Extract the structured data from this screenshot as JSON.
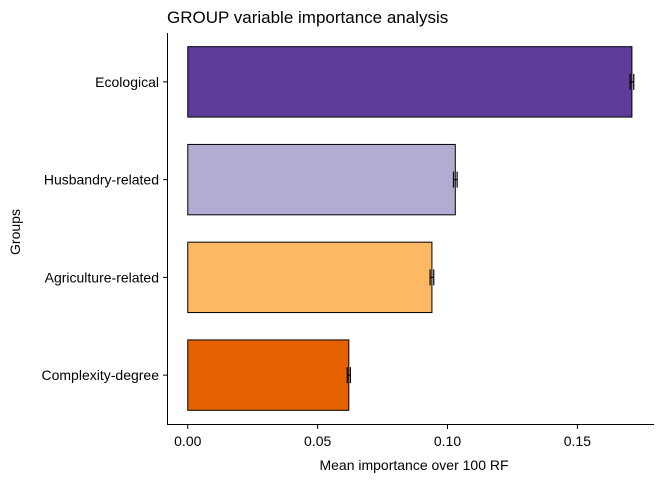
{
  "chart_data": {
    "type": "bar",
    "orientation": "horizontal",
    "title": "GROUP variable importance analysis",
    "xlabel": "Mean importance over 100 RF",
    "ylabel": "Groups",
    "xlim": [
      -0.008,
      0.1795
    ],
    "xticks": [
      0.0,
      0.05,
      0.1,
      0.15
    ],
    "xtick_labels": [
      "0.00",
      "0.05",
      "0.10",
      "0.15"
    ],
    "grid": false,
    "legend": "none",
    "categories": [
      "Ecological",
      "Husbandry-related",
      "Agriculture-related",
      "Complexity-degree"
    ],
    "values": [
      0.171,
      0.103,
      0.094,
      0.062
    ],
    "error": [
      0.0007,
      0.0007,
      0.0007,
      0.0006
    ],
    "colors": [
      "#5E3C99",
      "#B2ABD2",
      "#FDB863",
      "#E66101"
    ]
  }
}
